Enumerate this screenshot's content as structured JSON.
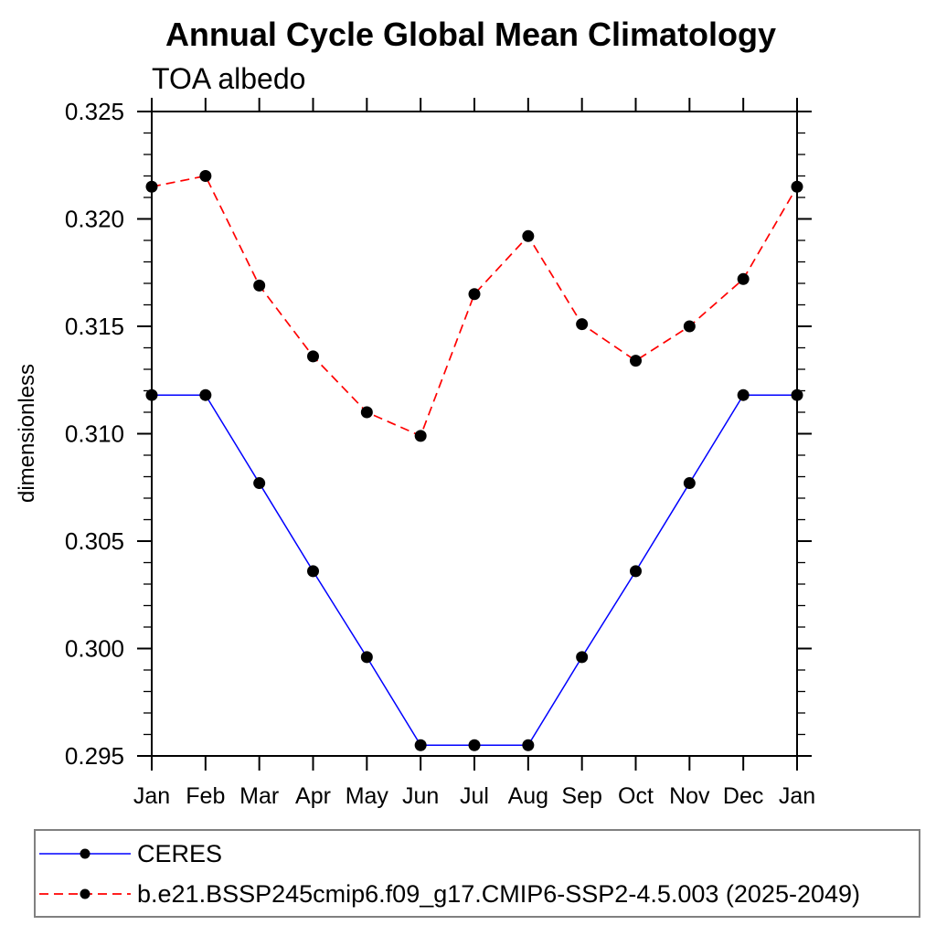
{
  "chart_data": {
    "type": "line",
    "title": "Annual Cycle Global Mean Climatology",
    "subtitle": "TOA albedo",
    "ylabel": "dimensionless",
    "xlabel": "",
    "x_labels": [
      "Jan",
      "Feb",
      "Mar",
      "Apr",
      "May",
      "Jun",
      "Jul",
      "Aug",
      "Sep",
      "Oct",
      "Nov",
      "Dec",
      "Jan"
    ],
    "ylim": [
      0.295,
      0.325
    ],
    "ytick_step": 0.005,
    "yminor_step": 0.001,
    "ytick_labels": [
      "0.295",
      "0.300",
      "0.305",
      "0.310",
      "0.315",
      "0.320",
      "0.325"
    ],
    "grid": false,
    "legend_position": "bottom-left-box",
    "marker_color": "#000000",
    "series": [
      {
        "name": "CERES",
        "color": "#0000ff",
        "line_style": "solid",
        "values": [
          0.3118,
          0.3118,
          0.3077,
          0.3036,
          0.2996,
          0.2955,
          0.2955,
          0.2955,
          0.2996,
          0.3036,
          0.3077,
          0.3118,
          0.3118
        ]
      },
      {
        "name": "b.e21.BSSP245cmip6.f09_g17.CMIP6-SSP2-4.5.003 (2025-2049)",
        "color": "#ff0000",
        "line_style": "dashed",
        "values": [
          0.3215,
          0.322,
          0.3169,
          0.3136,
          0.311,
          0.3099,
          0.3165,
          0.3192,
          0.3151,
          0.3134,
          0.315,
          0.3172,
          0.3215
        ]
      }
    ]
  }
}
